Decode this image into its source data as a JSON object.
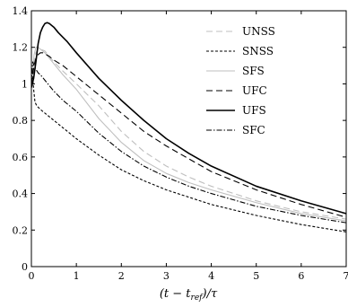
{
  "chart_data": {
    "type": "line",
    "title": "",
    "xlabel": "(t − t_ref)/τ",
    "xlabel_parts": {
      "open": "(t − t",
      "sub": "ref",
      "close": ")/τ"
    },
    "ylabel": "",
    "xlim": [
      0,
      7
    ],
    "ylim": [
      0,
      1.4
    ],
    "xticks": [
      0,
      1,
      2,
      3,
      4,
      5,
      6,
      7
    ],
    "yticks": [
      0,
      0.2,
      0.4,
      0.6,
      0.8,
      1,
      1.2,
      1.4
    ],
    "xtick_labels": [
      "0",
      "1",
      "2",
      "3",
      "4",
      "5",
      "6",
      "7"
    ],
    "ytick_labels": [
      "0",
      "0.2",
      "0.4",
      "0.6",
      "0.8",
      "1",
      "1.2",
      "1.4"
    ],
    "grid": false,
    "legend_position": "top-right",
    "series": [
      {
        "name": "UNSS",
        "color": "#bfbfbf",
        "style": "dashed",
        "x": [
          0,
          0.03,
          0.06,
          0.1,
          0.15,
          0.2,
          0.25,
          0.3,
          0.4,
          0.5,
          0.7,
          1,
          1.5,
          2,
          2.5,
          3,
          3.5,
          4,
          5,
          6,
          7
        ],
        "y": [
          1.0,
          1.06,
          1.12,
          1.17,
          1.19,
          1.19,
          1.185,
          1.18,
          1.15,
          1.12,
          1.07,
          1.0,
          0.88,
          0.74,
          0.63,
          0.55,
          0.49,
          0.44,
          0.36,
          0.3,
          0.26
        ]
      },
      {
        "name": "SNSS",
        "color": "#000000",
        "style": "fine-dashed",
        "x": [
          0,
          0.02,
          0.05,
          0.08,
          0.12,
          0.2,
          0.3,
          0.5,
          0.7,
          1,
          1.5,
          2,
          2.5,
          3,
          3.5,
          4,
          5,
          6,
          7
        ],
        "y": [
          1.0,
          1.07,
          0.97,
          0.9,
          0.88,
          0.86,
          0.84,
          0.8,
          0.76,
          0.7,
          0.61,
          0.53,
          0.47,
          0.42,
          0.38,
          0.34,
          0.28,
          0.23,
          0.19
        ]
      },
      {
        "name": "SFS",
        "color": "#bfbfbf",
        "style": "solid",
        "x": [
          0,
          0.03,
          0.06,
          0.1,
          0.15,
          0.2,
          0.25,
          0.3,
          0.4,
          0.5,
          0.7,
          1,
          1.5,
          2,
          2.5,
          3,
          3.5,
          4,
          5,
          6,
          7
        ],
        "y": [
          1.0,
          1.08,
          1.16,
          1.2,
          1.2,
          1.19,
          1.18,
          1.17,
          1.14,
          1.11,
          1.05,
          0.97,
          0.81,
          0.68,
          0.58,
          0.51,
          0.46,
          0.42,
          0.35,
          0.29,
          0.25
        ]
      },
      {
        "name": "UFC",
        "color": "#000000",
        "style": "dashed",
        "x": [
          0,
          0.03,
          0.06,
          0.1,
          0.15,
          0.2,
          0.25,
          0.3,
          0.4,
          0.5,
          0.7,
          1,
          1.5,
          2,
          2.5,
          3,
          3.5,
          4,
          5,
          6,
          7
        ],
        "y": [
          1.0,
          1.05,
          1.1,
          1.14,
          1.16,
          1.17,
          1.17,
          1.165,
          1.15,
          1.13,
          1.1,
          1.04,
          0.94,
          0.84,
          0.74,
          0.66,
          0.59,
          0.52,
          0.42,
          0.34,
          0.27
        ]
      },
      {
        "name": "UFS",
        "color": "#000000",
        "style": "solid",
        "x": [
          0,
          0.05,
          0.1,
          0.15,
          0.2,
          0.25,
          0.3,
          0.35,
          0.4,
          0.5,
          0.6,
          0.8,
          1,
          1.5,
          2,
          2.5,
          3,
          3.5,
          4,
          5,
          6,
          7
        ],
        "y": [
          0.98,
          1.03,
          1.12,
          1.22,
          1.28,
          1.31,
          1.33,
          1.335,
          1.33,
          1.31,
          1.28,
          1.23,
          1.17,
          1.03,
          0.91,
          0.8,
          0.7,
          0.62,
          0.55,
          0.44,
          0.36,
          0.29
        ]
      },
      {
        "name": "SFC",
        "color": "#000000",
        "style": "dash-dot",
        "x": [
          0,
          0.03,
          0.06,
          0.1,
          0.15,
          0.2,
          0.3,
          0.4,
          0.5,
          0.7,
          1,
          1.5,
          2,
          2.5,
          3,
          3.5,
          4,
          5,
          6,
          7
        ],
        "y": [
          1.0,
          1.12,
          1.1,
          1.08,
          1.06,
          1.05,
          1.02,
          0.99,
          0.96,
          0.91,
          0.85,
          0.73,
          0.63,
          0.55,
          0.49,
          0.44,
          0.4,
          0.33,
          0.28,
          0.24
        ]
      }
    ]
  }
}
